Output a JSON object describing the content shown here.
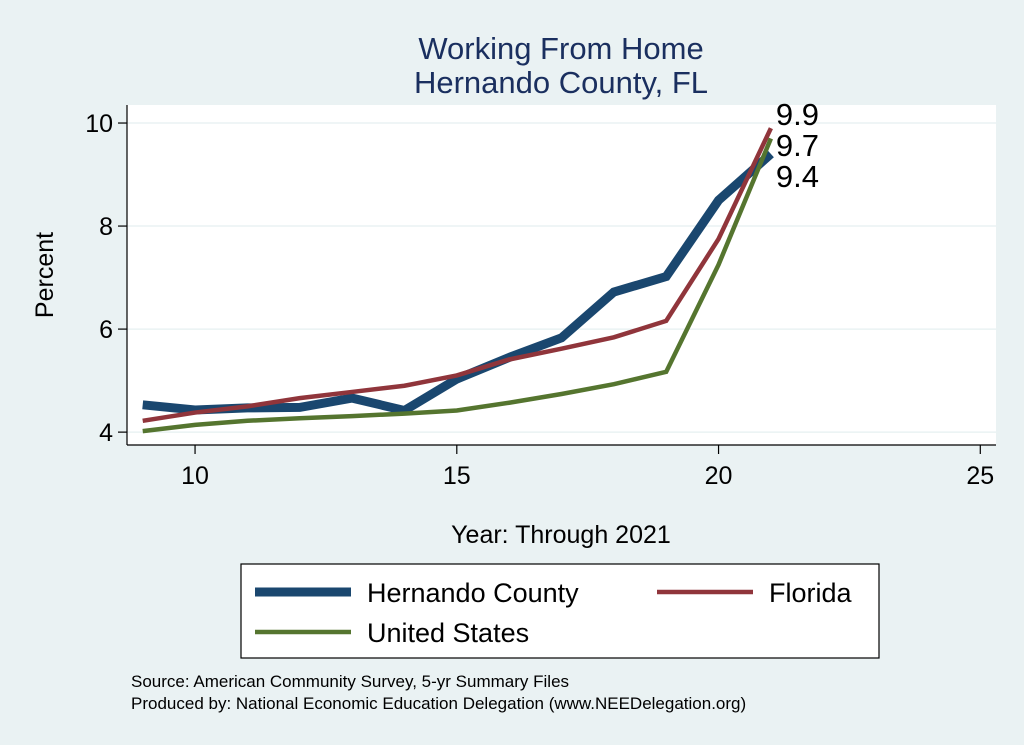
{
  "chart_data": {
    "type": "line",
    "title": [
      "Working From Home",
      "Hernando County, FL"
    ],
    "xlabel": "Year: Through 2021",
    "ylabel": "Percent",
    "xlim": [
      8.7,
      25.3
    ],
    "ylim": [
      3.75,
      10.35
    ],
    "xticks": [
      10,
      15,
      20,
      25
    ],
    "yticks": [
      4,
      6,
      8,
      10
    ],
    "grid": "horizontal",
    "legend": "bottom",
    "series": [
      {
        "name": "Hernando County",
        "color": "#1a476f",
        "x": [
          9,
          10,
          11,
          12,
          13,
          14,
          15,
          16,
          17,
          18,
          19,
          20,
          21
        ],
        "y": [
          4.53,
          4.43,
          4.47,
          4.48,
          4.66,
          4.42,
          5.03,
          5.45,
          5.83,
          6.72,
          7.02,
          8.5,
          9.4
        ],
        "end_label": "9.4"
      },
      {
        "name": "Florida",
        "color": "#90353b",
        "x": [
          9,
          10,
          11,
          12,
          13,
          14,
          15,
          16,
          17,
          18,
          19,
          20,
          21
        ],
        "y": [
          4.22,
          4.38,
          4.5,
          4.66,
          4.78,
          4.9,
          5.1,
          5.41,
          5.62,
          5.84,
          6.16,
          7.75,
          9.9
        ],
        "end_label": "9.9"
      },
      {
        "name": "United States",
        "color": "#55752f",
        "x": [
          9,
          10,
          11,
          12,
          13,
          14,
          15,
          16,
          17,
          18,
          19,
          20,
          21
        ],
        "y": [
          4.02,
          4.14,
          4.22,
          4.27,
          4.31,
          4.36,
          4.42,
          4.57,
          4.74,
          4.93,
          5.17,
          7.25,
          9.7
        ],
        "end_label": "9.7"
      }
    ]
  },
  "notes": [
    "Source: American Community Survey, 5-yr Summary Files",
    "Produced by: National Economic Education Delegation (www.NEEDelegation.org)"
  ]
}
